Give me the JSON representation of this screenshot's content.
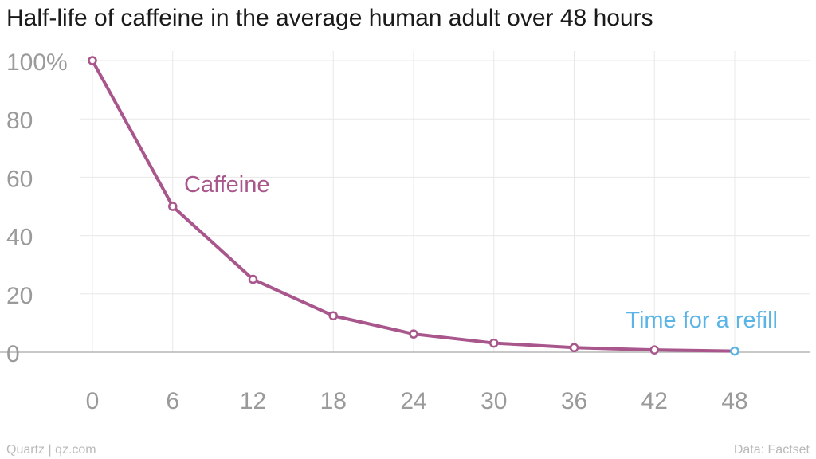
{
  "chart_data": {
    "type": "line",
    "title": "Half-life of caffeine in the average human adult over 48 hours",
    "x": [
      0,
      6,
      12,
      18,
      24,
      30,
      36,
      42,
      48
    ],
    "series": [
      {
        "name": "Caffeine",
        "values": [
          100,
          50,
          25,
          12.5,
          6.25,
          3.125,
          1.5625,
          0.78,
          0.39
        ]
      }
    ],
    "xticks": [
      "0",
      "6",
      "12",
      "18",
      "24",
      "30",
      "36",
      "42",
      "48"
    ],
    "yticks": [
      "100%",
      "80",
      "60",
      "40",
      "20",
      "0"
    ],
    "ytick_values": [
      100,
      80,
      60,
      40,
      20,
      0
    ],
    "xlim": [
      0,
      48
    ],
    "ylim": [
      0,
      100
    ],
    "grid": true,
    "annotations": [
      {
        "text": "Time for a refill",
        "x": 48,
        "y": 0.39,
        "color": "#5ab4e5"
      }
    ],
    "colors": {
      "series": "#a8568c",
      "highlight": "#5ab4e5",
      "grid": "#e8e8e8",
      "baseline": "#a8a8a8",
      "tick": "#9a9a9a"
    }
  },
  "footer": {
    "source_left": "Quartz | qz.com",
    "source_right": "Data: Factset"
  }
}
